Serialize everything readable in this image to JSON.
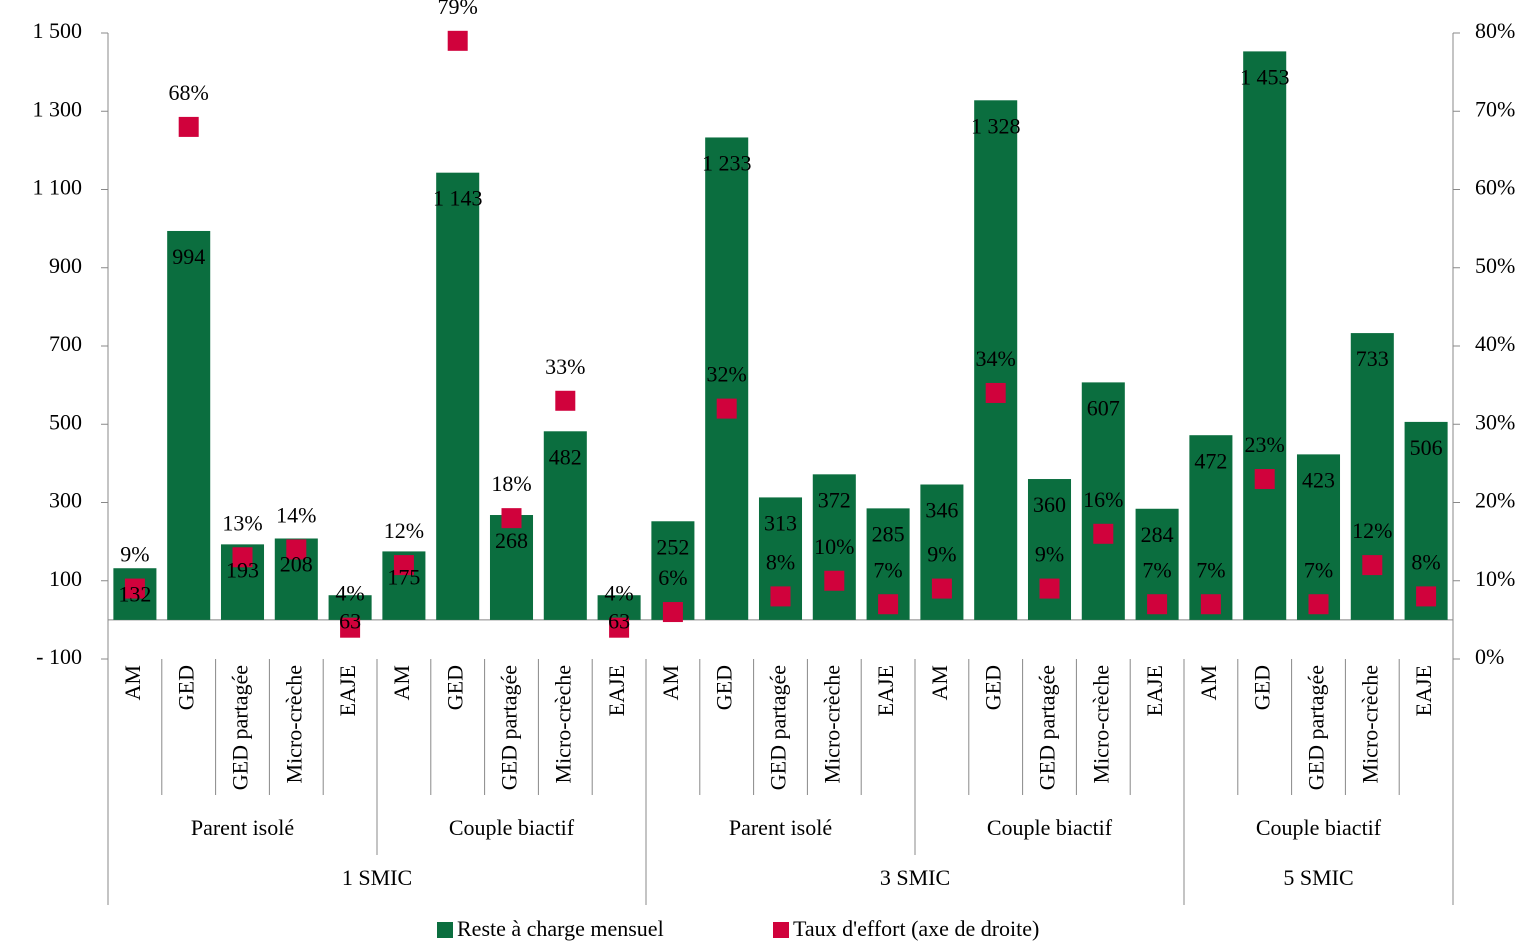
{
  "chart_data": {
    "type": "bar",
    "categories": [
      "AM",
      "GED",
      "GED partagée",
      "Micro-crèche",
      "EAJE",
      "AM",
      "GED",
      "GED partagée",
      "Micro-crèche",
      "EAJE",
      "AM",
      "GED",
      "GED partagée",
      "Micro-crèche",
      "EAJE",
      "AM",
      "GED",
      "GED partagée",
      "Micro-crèche",
      "EAJE",
      "AM",
      "GED",
      "GED partagée",
      "Micro-crèche",
      "EAJE"
    ],
    "household": [
      "Parent isolé",
      "Parent isolé",
      "Parent isolé",
      "Parent isolé",
      "Parent isolé",
      "Couple biactif",
      "Couple biactif",
      "Couple biactif",
      "Couple biactif",
      "Couple biactif",
      "Parent isolé",
      "Parent isolé",
      "Parent isolé",
      "Parent isolé",
      "Parent isolé",
      "Couple biactif",
      "Couple biactif",
      "Couple biactif",
      "Couple biactif",
      "Couple biactif",
      "Couple biactif",
      "Couple biactif",
      "Couple biactif",
      "Couple biactif",
      "Couple biactif"
    ],
    "income": [
      "1 SMIC",
      "1 SMIC",
      "1 SMIC",
      "1 SMIC",
      "1 SMIC",
      "1 SMIC",
      "1 SMIC",
      "1 SMIC",
      "1 SMIC",
      "1 SMIC",
      "3 SMIC",
      "3 SMIC",
      "3 SMIC",
      "3 SMIC",
      "3 SMIC",
      "3 SMIC",
      "3 SMIC",
      "3 SMIC",
      "3 SMIC",
      "3 SMIC",
      "5 SMIC",
      "5 SMIC",
      "5 SMIC",
      "5 SMIC",
      "5 SMIC"
    ],
    "series": [
      {
        "name": "Reste à charge mensuel",
        "color": "#0b6e3f",
        "values": [
          132,
          994,
          193,
          208,
          63,
          175,
          1143,
          268,
          482,
          63,
          252,
          1233,
          313,
          372,
          285,
          346,
          1328,
          360,
          607,
          284,
          472,
          1453,
          423,
          733,
          506
        ],
        "value_labels": [
          "132",
          "994",
          "193",
          "208",
          "63",
          "175",
          "1 143",
          "268",
          "482",
          "63",
          "252",
          "1 233",
          "313",
          "372",
          "285",
          "346",
          "1 328",
          "360",
          "607",
          "284",
          "472",
          "1 453",
          "423",
          "733",
          "506"
        ]
      },
      {
        "name": "Taux d'effort (axe de droite)",
        "color": "#d0023c",
        "axis": "y2",
        "values": [
          9,
          68,
          13,
          14,
          4,
          12,
          79,
          18,
          33,
          4,
          6,
          32,
          8,
          10,
          7,
          9,
          34,
          9,
          16,
          7,
          7,
          23,
          7,
          12,
          8
        ],
        "value_labels": [
          "9%",
          "68%",
          "13%",
          "14%",
          "4%",
          "12%",
          "79%",
          "18%",
          "33%",
          "4%",
          "6%",
          "32%",
          "8%",
          "10%",
          "7%",
          "9%",
          "34%",
          "9%",
          "16%",
          "7%",
          "7%",
          "23%",
          "7%",
          "12%",
          "8%"
        ]
      }
    ],
    "ylim": [
      -100,
      1500
    ],
    "yticks": [
      {
        "value": -100,
        "label": "- 100"
      },
      100,
      300,
      500,
      700,
      900,
      {
        "value": 1100,
        "label": "1 100"
      },
      {
        "value": 1300,
        "label": "1 300"
      },
      {
        "value": 1500,
        "label": "1 500"
      }
    ],
    "y2lim": [
      0,
      80
    ],
    "y2ticks": [
      {
        "value": 0,
        "label": "0%"
      },
      {
        "value": 10,
        "label": "10%"
      },
      {
        "value": 20,
        "label": "20%"
      },
      {
        "value": 30,
        "label": "30%"
      },
      {
        "value": 40,
        "label": "40%"
      },
      {
        "value": 50,
        "label": "50%"
      },
      {
        "value": 60,
        "label": "60%"
      },
      {
        "value": 70,
        "label": "70%"
      },
      {
        "value": 80,
        "label": "80%"
      }
    ],
    "legend": "bottom"
  }
}
